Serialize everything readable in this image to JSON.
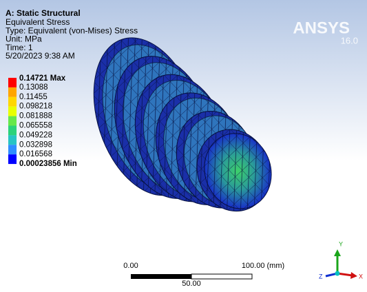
{
  "header": {
    "title": "A: Static Structural",
    "lines": [
      "Equivalent Stress",
      "Type: Equivalent (von-Mises) Stress",
      "Unit: MPa",
      "Time: 1",
      "5/20/2023 9:38 AM"
    ]
  },
  "legend": {
    "labels": [
      "0.14721 Max",
      "0.13088",
      "0.11455",
      "0.098218",
      "0.081888",
      "0.065558",
      "0.049228",
      "0.032898",
      "0.016568",
      "0.00023856 Min"
    ],
    "colors": [
      "#ff0000",
      "#ffa500",
      "#ffd700",
      "#e8ff00",
      "#66e84a",
      "#2bd27a",
      "#27c4c4",
      "#2f8dff",
      "#0000ff"
    ]
  },
  "logo": {
    "name": "ANSYS",
    "version": "16.0"
  },
  "scale_bar": {
    "start": "0.00",
    "end": "100.00 (mm)",
    "middle": "50.00"
  },
  "triad": {
    "x": "X",
    "y": "Y",
    "z": "Z"
  }
}
